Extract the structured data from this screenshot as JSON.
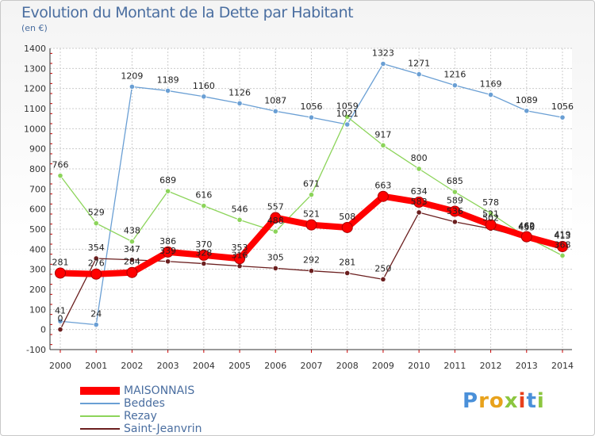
{
  "title": "Evolution du Montant de la Dette par Habitant",
  "subtitle": "(en €)",
  "logo": "Proxiti",
  "chart_data": {
    "type": "line",
    "x": [
      2000,
      2001,
      2002,
      2003,
      2004,
      2005,
      2006,
      2007,
      2008,
      2009,
      2010,
      2011,
      2012,
      2013,
      2014
    ],
    "ylim": [
      -100,
      1400
    ],
    "yticks": [
      -100,
      0,
      100,
      200,
      300,
      400,
      500,
      600,
      700,
      800,
      900,
      1000,
      1100,
      1200,
      1300,
      1400
    ],
    "grid": true,
    "legend_position": "bottom-left",
    "series": [
      {
        "name": "MAISONNAIS",
        "color": "#ff0000",
        "values": [
          281,
          276,
          284,
          386,
          370,
          353,
          557,
          521,
          508,
          663,
          634,
          589,
          521,
          462,
          413
        ]
      },
      {
        "name": "Beddes",
        "color": "#6a9fd4",
        "values": [
          41,
          24,
          1209,
          1189,
          1160,
          1126,
          1087,
          1056,
          1021,
          1323,
          1271,
          1216,
          1169,
          1089,
          1056
        ]
      },
      {
        "name": "Rezay",
        "color": "#8cd45a",
        "values": [
          766,
          529,
          438,
          689,
          616,
          546,
          488,
          671,
          1059,
          917,
          800,
          685,
          578,
          460,
          368
        ]
      },
      {
        "name": "Saint-Jeanvrin",
        "color": "#6b1f1f",
        "values": [
          0,
          354,
          347,
          339,
          328,
          316,
          305,
          292,
          281,
          250,
          583,
          536,
          502,
          455,
          419
        ]
      }
    ]
  }
}
